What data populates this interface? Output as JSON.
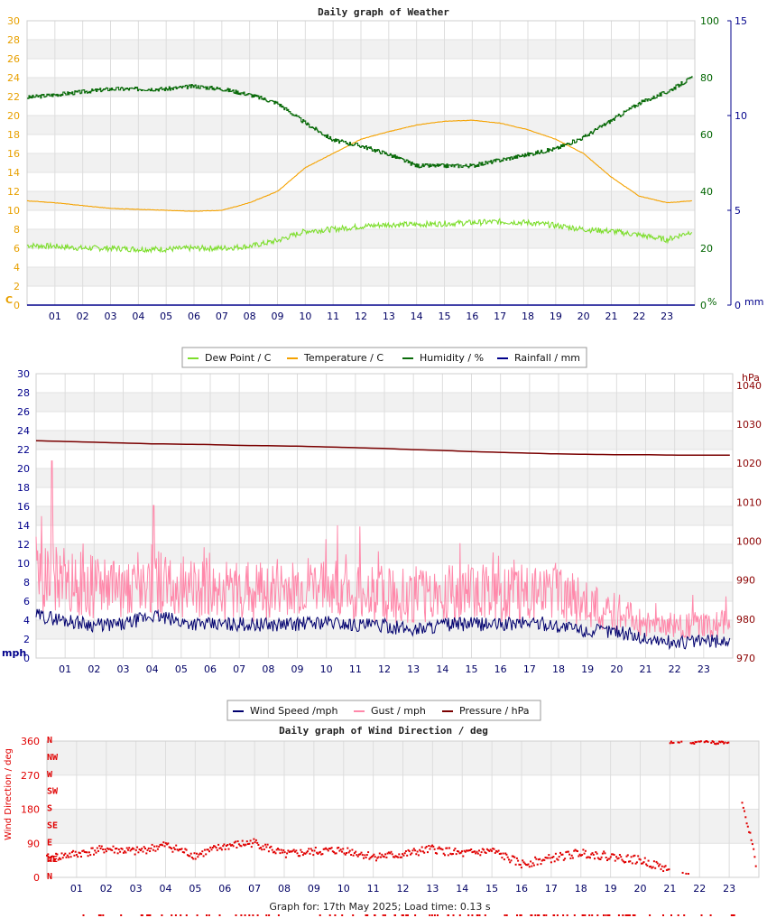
{
  "weather": {
    "title": "Daily graph of Weather",
    "left_unit": "C",
    "mid_unit": "%",
    "right_unit": "mm",
    "colors": {
      "dew": "#7ec8a8",
      "temp": "#ff9c00",
      "hum": "#006400",
      "rain": "#00008b"
    },
    "legend": [
      "Dew Point / C",
      "Temperature / C",
      "Humidity / %",
      "Rainfall / mm"
    ],
    "x_ticks": [
      "01",
      "02",
      "03",
      "04",
      "05",
      "06",
      "07",
      "08",
      "09",
      "10",
      "11",
      "12",
      "13",
      "14",
      "15",
      "16",
      "17",
      "18",
      "19",
      "20",
      "21",
      "22",
      "23"
    ]
  },
  "wind": {
    "left_unit": "mph",
    "right_unit": "hPa",
    "legend": [
      "Wind Speed /mph",
      "Gust / mph",
      "Pressure / hPa"
    ],
    "x_ticks": [
      "01",
      "02",
      "03",
      "04",
      "05",
      "06",
      "07",
      "08",
      "09",
      "10",
      "11",
      "12",
      "13",
      "14",
      "15",
      "16",
      "17",
      "18",
      "19",
      "20",
      "21",
      "22",
      "23"
    ]
  },
  "direction": {
    "title": "Daily graph of Wind Direction / deg",
    "ylabel": "Wind Direction / deg",
    "compass": [
      "N",
      "NW",
      "W",
      "SW",
      "S",
      "SE",
      "E",
      "NE",
      "N"
    ],
    "x_ticks": [
      "01",
      "02",
      "03",
      "04",
      "05",
      "06",
      "07",
      "08",
      "09",
      "10",
      "11",
      "12",
      "13",
      "14",
      "15",
      "16",
      "17",
      "18",
      "19",
      "20",
      "21",
      "22",
      "23"
    ]
  },
  "footer": "Graph for: 17th May 2025; Load time: 0.13 s",
  "chart_data": [
    {
      "type": "line",
      "title": "Daily graph of Weather",
      "x": [
        0,
        1,
        2,
        3,
        4,
        5,
        6,
        7,
        8,
        9,
        10,
        11,
        12,
        13,
        14,
        15,
        16,
        17,
        18,
        19,
        20,
        21,
        22,
        23,
        23.9
      ],
      "yaxis_left": {
        "label": "C",
        "range": [
          0,
          30
        ],
        "ticks": [
          0,
          2,
          4,
          6,
          8,
          10,
          12,
          14,
          16,
          18,
          20,
          22,
          24,
          26,
          28,
          30
        ]
      },
      "yaxis_mid": {
        "label": "%",
        "range": [
          0,
          100
        ],
        "ticks": [
          0,
          20,
          40,
          60,
          80,
          100
        ]
      },
      "yaxis_right": {
        "label": "mm",
        "range": [
          0,
          15
        ],
        "ticks": [
          0,
          5,
          10,
          15
        ]
      },
      "series": [
        {
          "name": "Dew Point / C",
          "axis": "left",
          "color": "#7dde2c",
          "values": [
            6.3,
            6.2,
            6.0,
            6.0,
            5.9,
            5.9,
            6.0,
            6.0,
            6.2,
            6.8,
            7.8,
            8.0,
            8.3,
            8.5,
            8.5,
            8.6,
            8.7,
            8.8,
            8.7,
            8.4,
            8.0,
            7.8,
            7.4,
            6.9,
            7.8
          ]
        },
        {
          "name": "Temperature / C",
          "axis": "left",
          "color": "#f5a200",
          "values": [
            11.0,
            10.8,
            10.5,
            10.2,
            10.1,
            10.0,
            9.9,
            10.0,
            10.8,
            12.0,
            14.5,
            16.0,
            17.5,
            18.3,
            19.0,
            19.4,
            19.5,
            19.2,
            18.5,
            17.5,
            16.0,
            13.5,
            11.5,
            10.8,
            11.0
          ]
        },
        {
          "name": "Humidity / %",
          "axis": "mid",
          "color": "#0a6b0a",
          "values": [
            73,
            74,
            75,
            76,
            76,
            76,
            77,
            76,
            74,
            71,
            64,
            58,
            56,
            53,
            49,
            49,
            49,
            51,
            53,
            55,
            59,
            65,
            71,
            75,
            80
          ]
        },
        {
          "name": "Rainfall / mm",
          "axis": "right",
          "color": "#00008b",
          "values": [
            0,
            0,
            0,
            0,
            0,
            0,
            0,
            0,
            0,
            0,
            0,
            0,
            0,
            0,
            0,
            0,
            0,
            0,
            0,
            0,
            0,
            0,
            0,
            0,
            0
          ]
        }
      ]
    },
    {
      "type": "line",
      "x": [
        0,
        1,
        2,
        3,
        4,
        5,
        6,
        7,
        8,
        9,
        10,
        11,
        12,
        13,
        14,
        15,
        16,
        17,
        18,
        19,
        20,
        21,
        22,
        23,
        23.9
      ],
      "yaxis_left": {
        "label": "mph",
        "range": [
          0,
          30
        ],
        "ticks": [
          0,
          2,
          4,
          6,
          8,
          10,
          12,
          14,
          16,
          18,
          20,
          22,
          24,
          26,
          28,
          30
        ]
      },
      "yaxis_right": {
        "label": "hPa",
        "range": [
          970,
          1043
        ],
        "ticks": [
          970,
          980,
          990,
          1000,
          1010,
          1020,
          1030,
          1040
        ]
      },
      "series": [
        {
          "name": "Wind Speed /mph",
          "axis": "left",
          "color": "#00006e",
          "values": [
            4.5,
            4.0,
            3.5,
            3.5,
            4.5,
            3.8,
            3.5,
            3.6,
            3.5,
            3.6,
            3.8,
            3.5,
            3.4,
            3.0,
            3.5,
            3.6,
            3.5,
            3.8,
            3.4,
            2.8,
            2.9,
            2.0,
            1.6,
            1.8,
            1.8
          ]
        },
        {
          "name": "Gust / mph",
          "axis": "left",
          "color": "#ff88aa",
          "values": [
            9.0,
            8.0,
            7.5,
            7.5,
            8.0,
            7.5,
            7.0,
            7.0,
            7.0,
            7.2,
            7.5,
            7.0,
            6.8,
            6.5,
            6.8,
            6.9,
            6.8,
            6.8,
            7.0,
            5.5,
            4.8,
            3.6,
            3.4,
            3.4,
            3.6
          ]
        },
        {
          "name": "Pressure / hPa",
          "axis": "right",
          "color": "#7a0000",
          "values": [
            1025.8,
            1025.6,
            1025.4,
            1025.2,
            1025.0,
            1024.9,
            1024.8,
            1024.6,
            1024.5,
            1024.4,
            1024.2,
            1024.0,
            1023.8,
            1023.5,
            1023.3,
            1023.0,
            1022.8,
            1022.6,
            1022.4,
            1022.3,
            1022.2,
            1022.2,
            1022.1,
            1022.1,
            1022.1
          ]
        }
      ]
    },
    {
      "type": "scatter",
      "title": "Daily graph of Wind Direction / deg",
      "ylabel": "Wind Direction / deg",
      "yaxis": {
        "range": [
          0,
          360
        ],
        "ticks": [
          0,
          90,
          180,
          270,
          360
        ]
      },
      "x": [
        0,
        1,
        2,
        3,
        4,
        5,
        6,
        7,
        8,
        9,
        10,
        11,
        12,
        13,
        14,
        15,
        16,
        17,
        18,
        19,
        20,
        21,
        21.5,
        22,
        23,
        23.9
      ],
      "series": [
        {
          "name": "Wind Direction / deg",
          "color": "#e00000",
          "values": [
            50,
            62,
            75,
            68,
            85,
            58,
            82,
            92,
            60,
            68,
            72,
            55,
            60,
            75,
            62,
            70,
            35,
            50,
            65,
            55,
            45,
            20,
            360,
            355,
            360,
            40
          ]
        }
      ]
    }
  ]
}
